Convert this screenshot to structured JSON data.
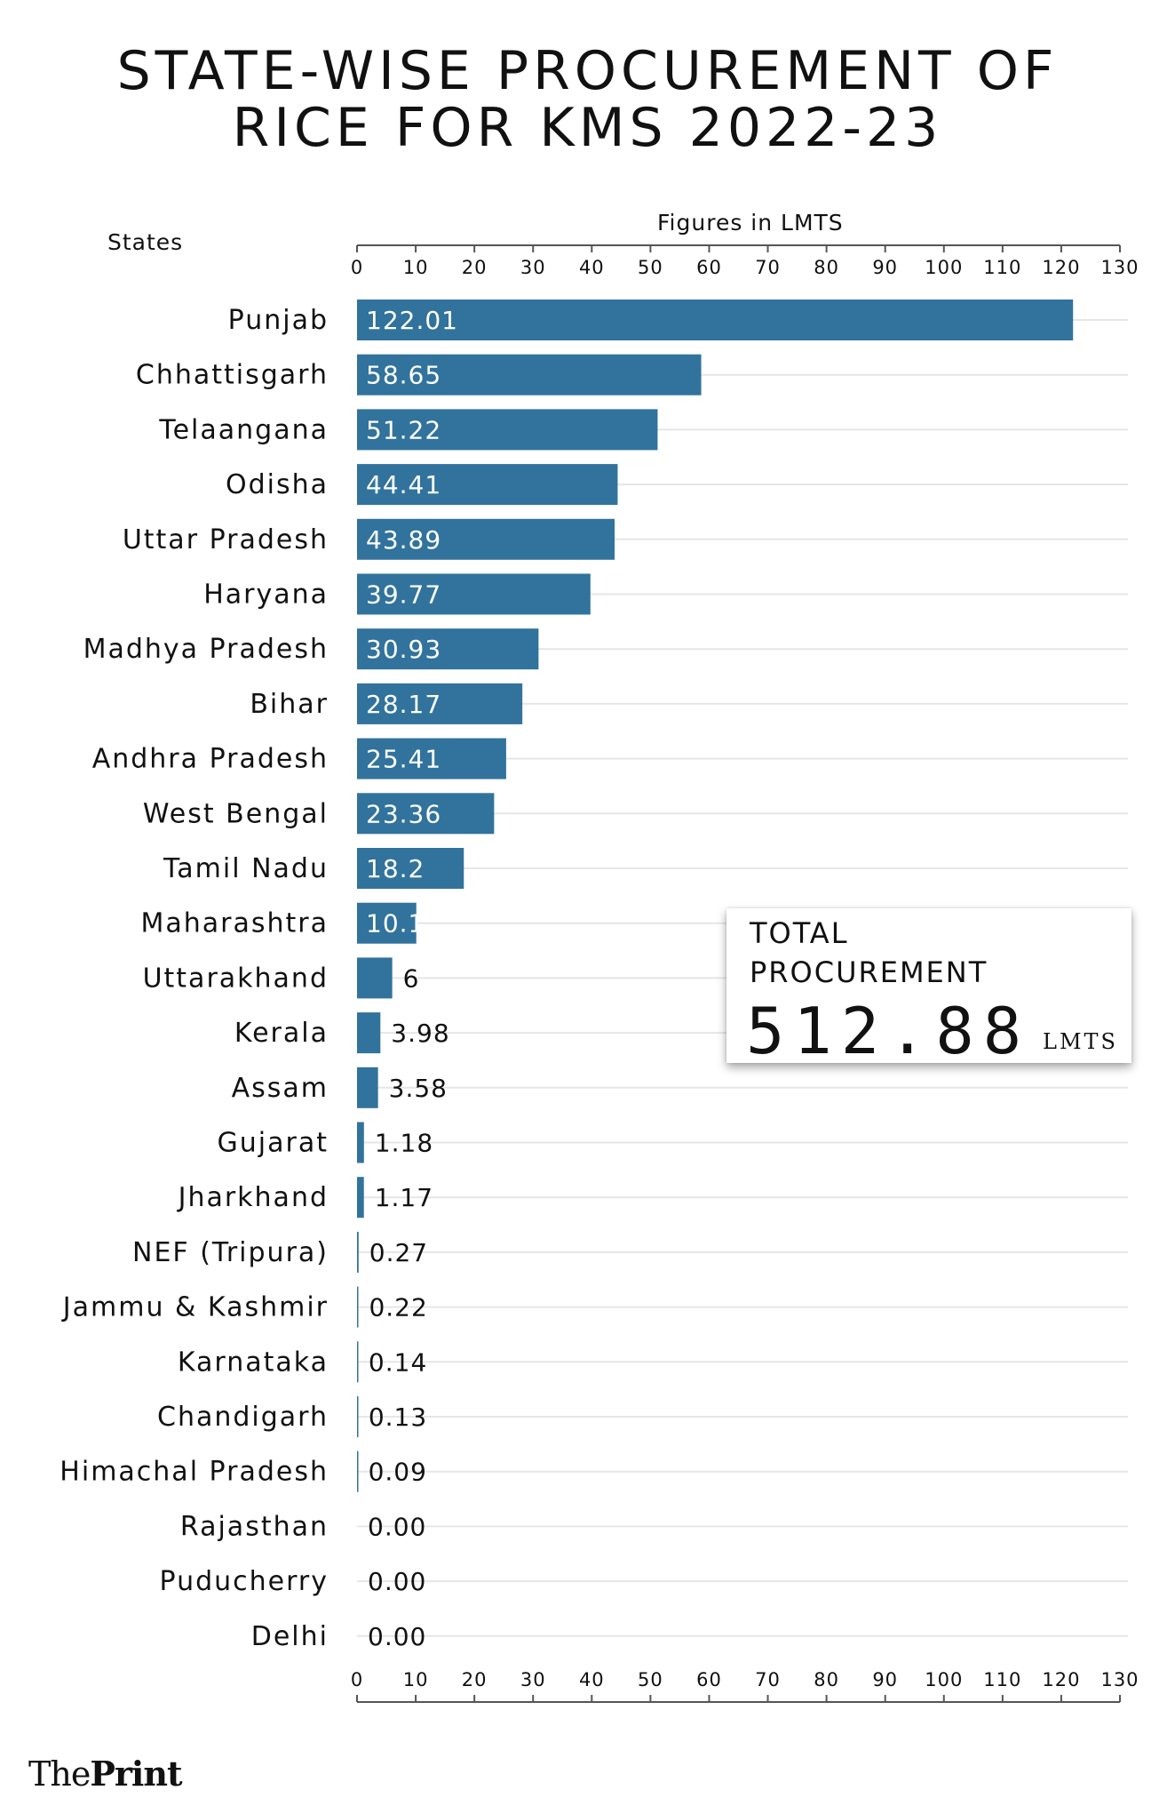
{
  "chart_data": {
    "type": "bar",
    "orientation": "horizontal",
    "title": [
      "STATE-WISE PROCUREMENT OF",
      "RICE FOR KMS 2022-23"
    ],
    "ylabel": "States",
    "xlabel": "Figures in LMTS",
    "xlim": [
      0,
      130
    ],
    "xticks": [
      0,
      10,
      20,
      30,
      40,
      50,
      60,
      70,
      80,
      90,
      100,
      110,
      120,
      130
    ],
    "grid": true,
    "bar_color": "#31739c",
    "categories": [
      "Punjab",
      "Chhattisgarh",
      "Telaangana",
      "Odisha",
      "Uttar Pradesh",
      "Haryana",
      "Madhya Pradesh",
      "Bihar",
      "Andhra Pradesh",
      "West Bengal",
      "Tamil Nadu",
      "Maharashtra",
      "Uttarakhand",
      "Kerala",
      "Assam",
      "Gujarat",
      "Jharkhand",
      "NEF (Tripura)",
      "Jammu & Kashmir",
      "Karnataka",
      "Chandigarh",
      "Himachal Pradesh",
      "Rajasthan",
      "Puducherry",
      "Delhi"
    ],
    "values": [
      122.01,
      58.65,
      51.22,
      44.41,
      43.89,
      39.77,
      30.93,
      28.17,
      25.41,
      23.36,
      18.2,
      10.1,
      6,
      3.98,
      3.58,
      1.18,
      1.17,
      0.27,
      0.22,
      0.14,
      0.13,
      0.09,
      0.0,
      0.0,
      0.0
    ],
    "value_labels": [
      "122.01",
      "58.65",
      "51.22",
      "44.41",
      "43.89",
      "39.77",
      "30.93",
      "28.17",
      "25.41",
      "23.36",
      "18.2",
      "10.1",
      "6",
      "3.98",
      "3.58",
      "1.18",
      "1.17",
      "0.27",
      "0.22",
      "0.14",
      "0.13",
      "0.09",
      "0.00",
      "0.00",
      "0.00"
    ]
  },
  "total": {
    "label_line1": "TOTAL",
    "label_line2": "PROCUREMENT",
    "value": "512.88",
    "unit": "LMTS"
  },
  "branding": {
    "prefix": "The",
    "name": "Print"
  }
}
